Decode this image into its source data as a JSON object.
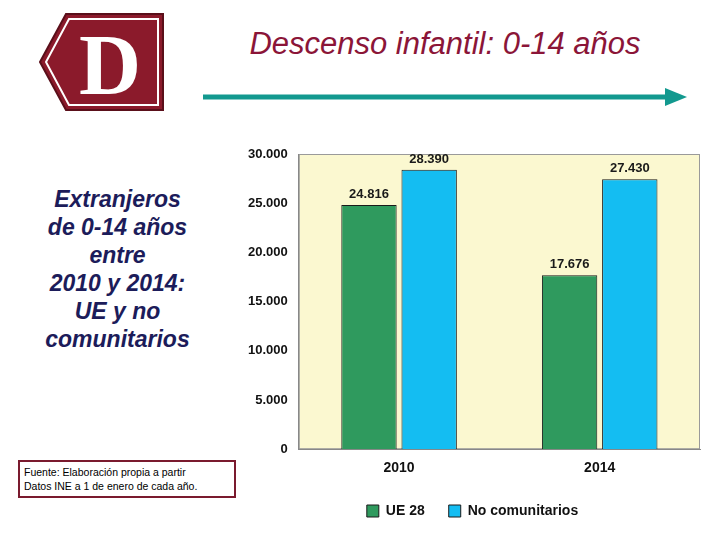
{
  "logo": "D",
  "title": "Descenso infantil: 0-14 años",
  "side_text": "Extranjeros\nde 0-14 años\nentre\n2010 y 2014:\nUE y no\ncomunitarios",
  "source": "Fuente: Elaboración propia a partir\nDatos INE a 1 de enero de cada año.",
  "chart_data": {
    "type": "bar",
    "categories": [
      "2010",
      "2014"
    ],
    "series": [
      {
        "name": "UE 28",
        "color": "#2f9a5e",
        "values": [
          24816,
          17676
        ],
        "value_labels": [
          "24.816",
          "17.676"
        ]
      },
      {
        "name": "No comunitarios",
        "color": "#14bdf2",
        "values": [
          28390,
          27430
        ],
        "value_labels": [
          "28.390",
          "27.430"
        ]
      }
    ],
    "ylim": [
      0,
      30000
    ],
    "yticks": [
      0,
      {
        "value": 5000,
        "label": "5.000"
      },
      {
        "value": 10000,
        "label": "10.000"
      },
      {
        "value": 15000,
        "label": "15.000"
      },
      {
        "value": 20000,
        "label": "20.000"
      },
      {
        "value": 25000,
        "label": "25.000"
      },
      {
        "value": 30000,
        "label": "30.000"
      }
    ],
    "grid": false,
    "legend": "bottom",
    "data_labels": true
  }
}
